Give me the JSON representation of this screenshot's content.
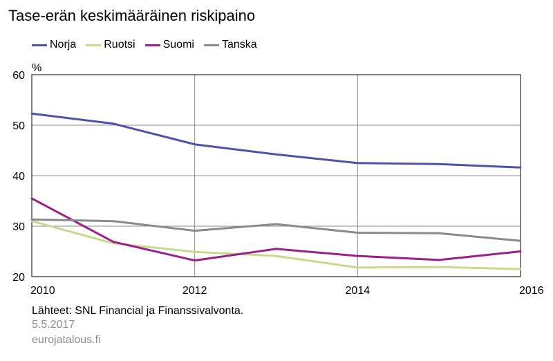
{
  "chart_data": {
    "type": "line",
    "title": "Tase-erän keskimääräinen riskipaino",
    "ylabel": "%",
    "xlabel": "",
    "ylim": [
      20,
      60
    ],
    "xlim": [
      2010,
      2016
    ],
    "yticks": [
      20,
      30,
      40,
      50,
      60
    ],
    "xticks": [
      2010,
      2012,
      2014,
      2016
    ],
    "x": [
      2010,
      2011,
      2012,
      2013,
      2014,
      2015,
      2016
    ],
    "grid": true,
    "legend_position": "top-left",
    "series": [
      {
        "name": "Norja",
        "color": "#4a54a8",
        "values": [
          52.3,
          50.3,
          46.2,
          44.2,
          42.5,
          42.3,
          41.6
        ]
      },
      {
        "name": "Ruotsi",
        "color": "#c7d98a",
        "values": [
          31.0,
          26.6,
          24.9,
          24.1,
          21.8,
          21.9,
          21.5
        ]
      },
      {
        "name": "Suomi",
        "color": "#9b1f8a",
        "values": [
          35.5,
          26.9,
          23.2,
          25.5,
          24.1,
          23.3,
          25.0
        ]
      },
      {
        "name": "Tanska",
        "color": "#8a8a8a",
        "values": [
          31.3,
          31.0,
          29.1,
          30.4,
          28.7,
          28.6,
          27.1
        ]
      }
    ]
  },
  "footer": {
    "source": "Lähteet: SNL Financial ja Finanssivalvonta.",
    "date": "5.5.2017",
    "site": "eurojatalous.fi"
  }
}
